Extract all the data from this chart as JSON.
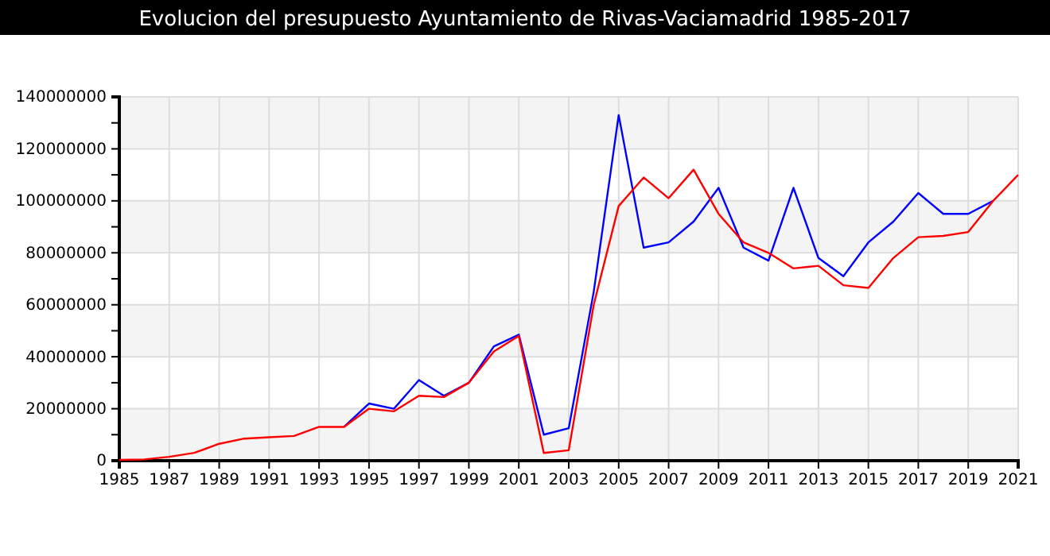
{
  "chart_data": {
    "type": "line",
    "title": "Evolucion del presupuesto Ayuntamiento de Rivas-Vaciamadrid 1985-2017",
    "x": [
      1985,
      1986,
      1987,
      1988,
      1989,
      1990,
      1991,
      1992,
      1993,
      1994,
      1995,
      1996,
      1997,
      1998,
      1999,
      2000,
      2001,
      2002,
      2003,
      2004,
      2005,
      2006,
      2007,
      2008,
      2009,
      2010,
      2011,
      2012,
      2013,
      2014,
      2015,
      2016,
      2017,
      2018,
      2019,
      2020,
      2021
    ],
    "series": [
      {
        "color": "#0000ff",
        "values": [
          null,
          null,
          null,
          null,
          null,
          null,
          null,
          null,
          null,
          13000000,
          22000000,
          20000000,
          31000000,
          25000000,
          30000000,
          44000000,
          48500000,
          10000000,
          12500000,
          65000000,
          133000000,
          82000000,
          84000000,
          92000000,
          105000000,
          82000000,
          77000000,
          105000000,
          78000000,
          71000000,
          84000000,
          92000000,
          103000000,
          95000000,
          95000000,
          100000000,
          null
        ]
      },
      {
        "color": "#ff0000",
        "values": [
          300000,
          500000,
          1500000,
          3000000,
          6500000,
          8500000,
          9000000,
          9500000,
          13000000,
          13000000,
          20000000,
          19000000,
          25000000,
          24500000,
          30000000,
          42000000,
          48000000,
          3000000,
          4000000,
          60000000,
          98000000,
          109000000,
          101000000,
          112000000,
          95000000,
          84000000,
          80000000,
          74000000,
          75000000,
          67500000,
          66500000,
          78000000,
          86000000,
          86500000,
          88000000,
          100000000,
          110000000
        ]
      }
    ],
    "xlim": [
      1985,
      2021
    ],
    "xticks": [
      1985,
      1987,
      1989,
      1991,
      1993,
      1995,
      1997,
      1999,
      2001,
      2003,
      2005,
      2007,
      2009,
      2011,
      2013,
      2015,
      2017,
      2019,
      2021
    ],
    "ylim": [
      0,
      140000000
    ],
    "yticks": [
      0,
      {
        "value": 10000000,
        "label": null
      },
      20000000,
      {
        "value": 30000000,
        "label": null
      },
      40000000,
      {
        "value": 50000000,
        "label": null
      },
      60000000,
      {
        "value": 70000000,
        "label": null
      },
      80000000,
      {
        "value": 90000000,
        "label": null
      },
      100000000,
      {
        "value": 110000000,
        "label": null
      },
      120000000,
      {
        "value": 130000000,
        "label": null
      },
      140000000
    ],
    "grid": true,
    "marker": "none",
    "line_style": "solid"
  }
}
